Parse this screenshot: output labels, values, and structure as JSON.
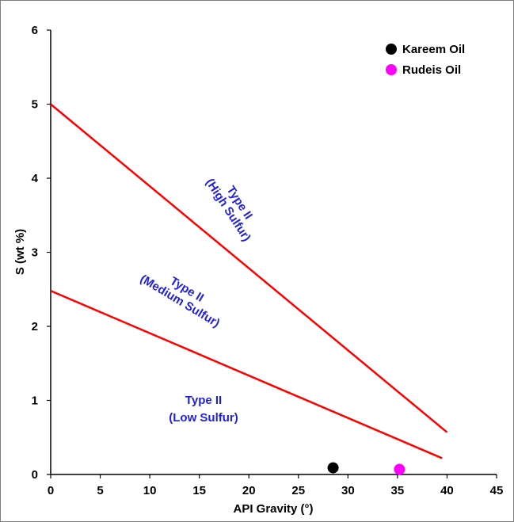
{
  "chart_data": {
    "type": "scatter",
    "xlabel": "API Gravity (°)",
    "ylabel": "S (wt %)",
    "xlim": [
      0,
      45
    ],
    "ylim": [
      0,
      6
    ],
    "x_ticks": [
      "0",
      "5",
      "10",
      "15",
      "20",
      "25",
      "30",
      "35",
      "40",
      "45"
    ],
    "y_ticks": [
      "0",
      "1",
      "2",
      "3",
      "4",
      "5",
      "6"
    ],
    "grid": false,
    "legend_position": "top-right",
    "series": [
      {
        "name": "Kareem Oil",
        "color": "#000000",
        "points": [
          {
            "x": 28.5,
            "y": 0.09
          }
        ]
      },
      {
        "name": "Rudeis Oil",
        "color": "#ff00ff",
        "points": [
          {
            "x": 35.2,
            "y": 0.07
          }
        ]
      }
    ],
    "boundary_lines": [
      {
        "color": "#ff0000",
        "x": [
          0,
          40
        ],
        "y": [
          5.0,
          0.57
        ]
      },
      {
        "color": "#ff0000",
        "x": [
          0,
          39.5
        ],
        "y": [
          2.48,
          0.22
        ]
      }
    ],
    "region_labels": [
      {
        "lines": [
          "Type II",
          "(High Sulfur)"
        ]
      },
      {
        "lines": [
          "Type II",
          "(Medium Sulfur)"
        ]
      },
      {
        "lines": [
          "Type II",
          "(Low Sulfur)"
        ]
      }
    ]
  }
}
